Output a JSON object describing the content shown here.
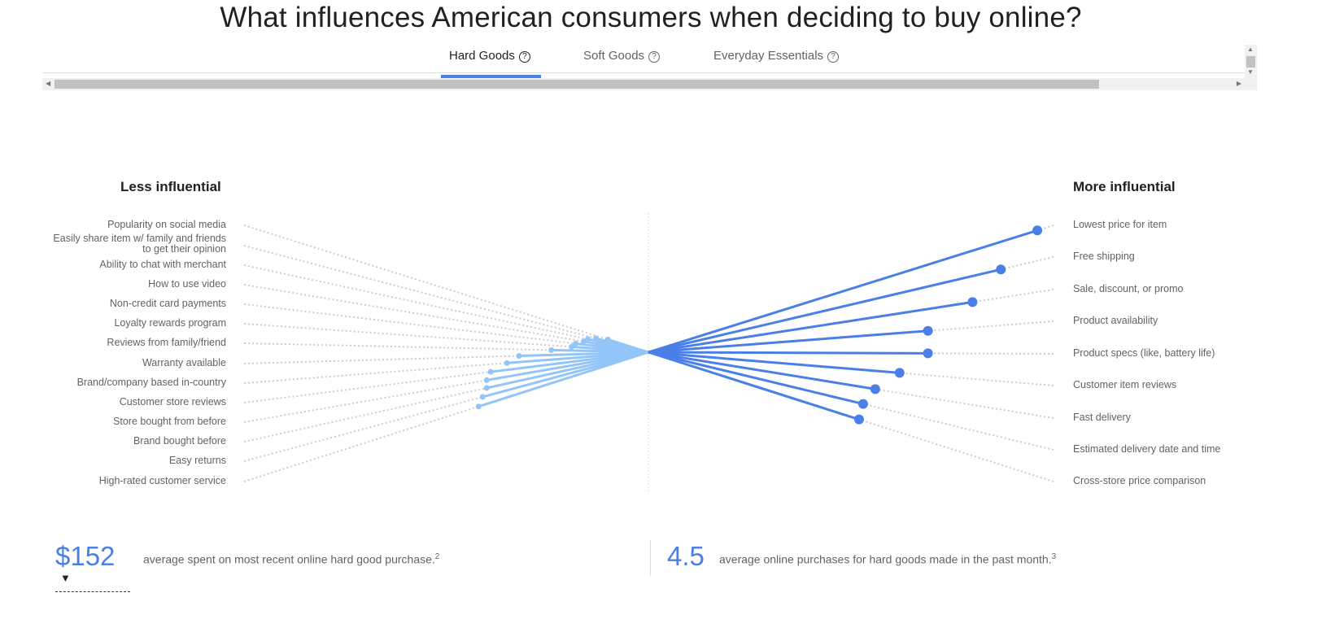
{
  "title": "What influences American consumers when deciding to buy online?",
  "tabs": [
    {
      "label": "Hard Goods",
      "active": true
    },
    {
      "label": "Soft Goods",
      "active": false
    },
    {
      "label": "Everyday Essentials",
      "active": false
    }
  ],
  "help_icon": "?",
  "colors": {
    "accent": "#4a7fe8",
    "less": "#93c5f8",
    "dotted": "#cccccc"
  },
  "chart_data": {
    "type": "radial-lollipop",
    "left_heading": "Less influential",
    "right_heading": "More influential",
    "left": [
      {
        "label": "Popularity on social media",
        "value": 0.1
      },
      {
        "label": "Easily share item w/ family and friends",
        "label2": "to get their opinion",
        "value": 0.13
      },
      {
        "label": "Ability to chat with merchant",
        "value": 0.15
      },
      {
        "label": "How to use video",
        "value": 0.16
      },
      {
        "label": "Non-credit card payments",
        "value": 0.18
      },
      {
        "label": "Loyalty rewards program",
        "value": 0.19
      },
      {
        "label": "Reviews from family/friend",
        "value": 0.24
      },
      {
        "label": "Warranty available",
        "value": 0.32
      },
      {
        "label": "Brand/company based in-country",
        "value": 0.35
      },
      {
        "label": "Customer store reviews",
        "value": 0.39
      },
      {
        "label": "Store bought from before",
        "value": 0.4
      },
      {
        "label": "Brand bought before",
        "value": 0.4
      },
      {
        "label": "Easy returns",
        "value": 0.41
      },
      {
        "label": "High-rated customer service",
        "value": 0.42
      }
    ],
    "right": [
      {
        "label": "Lowest price for item",
        "value": 0.96
      },
      {
        "label": "Free shipping",
        "value": 0.87
      },
      {
        "label": "Sale, discount, or promo",
        "value": 0.8
      },
      {
        "label": "Product availability",
        "value": 0.69
      },
      {
        "label": "Product specs (like, battery life)",
        "value": 0.69
      },
      {
        "label": "Customer item reviews",
        "value": 0.62
      },
      {
        "label": "Fast delivery",
        "value": 0.56
      },
      {
        "label": "Estimated delivery date and time",
        "value": 0.53
      },
      {
        "label": "Cross-store price comparison",
        "value": 0.52
      }
    ]
  },
  "stats": [
    {
      "value": "$152",
      "text": "average spent on most recent online hard good purchase.",
      "note": "2"
    },
    {
      "value": "4.5",
      "text": "average online purchases for hard goods made in the past month.",
      "note": "3"
    }
  ]
}
